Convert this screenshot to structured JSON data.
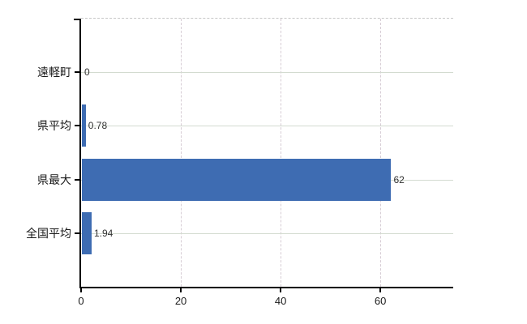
{
  "chart_data": {
    "type": "bar",
    "orientation": "horizontal",
    "title": "",
    "xlabel": "",
    "ylabel": "",
    "categories": [
      "遠軽町",
      "県平均",
      "県最大",
      "全国平均"
    ],
    "values": [
      0,
      0.78,
      62,
      1.94
    ],
    "value_labels": [
      "0",
      "0.78",
      "62",
      "1.94"
    ],
    "x_ticks": [
      0,
      20,
      40,
      60
    ],
    "x_tick_labels": [
      "0",
      "20",
      "40",
      "60"
    ],
    "xlim": [
      0,
      74.6
    ],
    "grid": true,
    "legend_position": "none",
    "bar_color": "#3e6cb2",
    "horizontal_grid_color": "#d3dbd0",
    "vertical_grid_color": "#d6ccd4",
    "top_border_color": "#c6c6c6",
    "axis_color": "#000000",
    "category_text_color": "#1a1a1a",
    "value_text_color": "#333333",
    "background_color": "#ffffff"
  }
}
